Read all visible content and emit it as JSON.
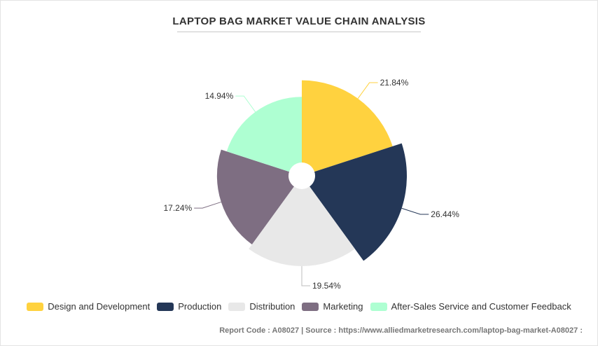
{
  "chart_data": {
    "type": "pie",
    "subtype": "polar-area",
    "title": "LAPTOP BAG MARKET VALUE CHAIN ANALYSIS",
    "categories": [
      "Design and Development",
      "Production",
      "Distribution",
      "Marketing",
      "After-Sales Service and Customer Feedback"
    ],
    "values": [
      21.84,
      26.44,
      19.54,
      17.24,
      14.94
    ],
    "labels": [
      "21.84%",
      "26.44%",
      "19.54%",
      "17.24%",
      "14.94%"
    ],
    "colors": [
      "#FFD23F",
      "#243757",
      "#E8E8E8",
      "#7E6E82",
      "#AEFFD2"
    ],
    "legend": "bottom"
  },
  "footer": {
    "text": "Report Code : A08027  |  Source : https://www.alliedmarketresearch.com/laptop-bag-market-A08027 :"
  }
}
